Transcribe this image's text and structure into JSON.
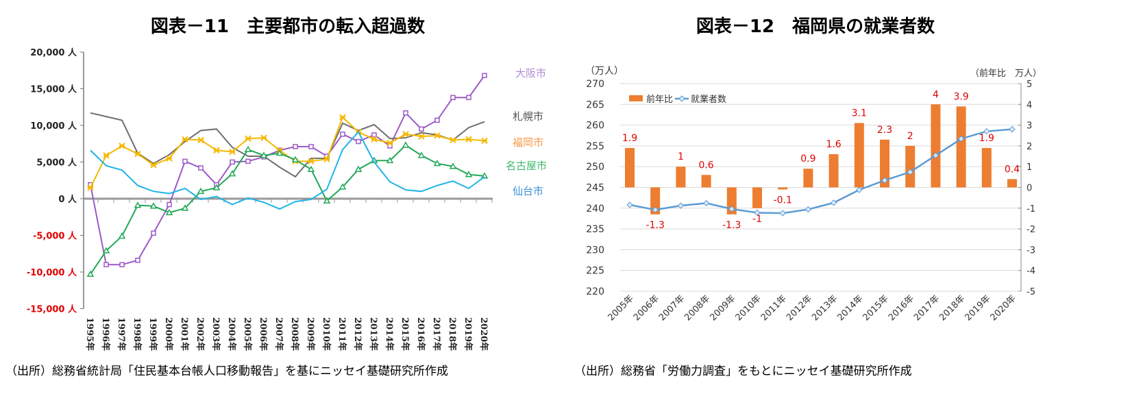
{
  "charts_titles": {
    "left": "図表－11　主要都市の転入超過数",
    "right": "図表－12　福岡県の就業者数"
  },
  "sources": {
    "left": "（出所）総務省統計局「住民基本台帳人口移動報告」を基にニッセイ基礎研究所作成",
    "right": "（出所）総務省「労働力調査」をもとにニッセイ基礎研究所作成"
  },
  "chart_data": [
    {
      "type": "line",
      "title": "図表－11　主要都市の転入超過数",
      "x": [
        "1995年",
        "1996年",
        "1997年",
        "1998年",
        "1999年",
        "2000年",
        "2001年",
        "2002年",
        "2003年",
        "2004年",
        "2005年",
        "2006年",
        "2007年",
        "2008年",
        "2009年",
        "2010年",
        "2011年",
        "2012年",
        "2013年",
        "2014年",
        "2015年",
        "2016年",
        "2017年",
        "2018年",
        "2019年",
        "2020年"
      ],
      "ylim": [
        -15000,
        20000
      ],
      "yticks": [
        20000,
        15000,
        10000,
        5000,
        0,
        -5000,
        -10000,
        -15000
      ],
      "ytick_labels": [
        "20,000 人",
        "15,000 人",
        "10,000 人",
        "5,000 人",
        "0 人",
        "-5,000 人",
        "-10,000 人",
        "-15,000 人"
      ],
      "negative_tick_color": "#e00000",
      "grid": false,
      "legend": "inline labels at right end",
      "series": [
        {
          "name": "大阪市",
          "color": "#9b59c6",
          "label_color": "#b58ad6",
          "marker": "square",
          "values": [
            1900,
            -9000,
            -9000,
            -8400,
            -4700,
            -800,
            5100,
            4200,
            1900,
            5000,
            5100,
            5700,
            6600,
            7100,
            7100,
            5800,
            8800,
            7800,
            8700,
            7200,
            11700,
            9500,
            10700,
            13800,
            13800,
            16800
          ]
        },
        {
          "name": "札幌市",
          "color": "#6e6e6e",
          "label_color": "#555555",
          "marker": "none",
          "values": [
            11700,
            11200,
            10700,
            6200,
            4800,
            6000,
            7800,
            9300,
            9500,
            7000,
            5800,
            5800,
            4300,
            3000,
            5500,
            5500,
            10300,
            9300,
            10100,
            8200,
            8300,
            9000,
            8700,
            8000,
            9700,
            10500
          ]
        },
        {
          "name": "福岡市",
          "color": "#f5b800",
          "label_color": "#f59a4a",
          "marker": "star",
          "values": [
            1500,
            5900,
            7200,
            6100,
            4600,
            5500,
            8100,
            8000,
            6600,
            6400,
            8200,
            8300,
            6600,
            5100,
            5100,
            5400,
            11100,
            9100,
            8100,
            7600,
            8800,
            8500,
            8600,
            8000,
            8100,
            7900
          ]
        },
        {
          "name": "名古屋市",
          "color": "#1fa855",
          "label_color": "#3cb86a",
          "marker": "triangle",
          "values": [
            -10300,
            -7100,
            -5100,
            -900,
            -1000,
            -1900,
            -1300,
            1000,
            1500,
            3400,
            6700,
            5900,
            6200,
            5300,
            4000,
            -300,
            1600,
            4000,
            5200,
            5200,
            7300,
            5900,
            4800,
            4400,
            3300,
            3100
          ]
        },
        {
          "name": "仙台市",
          "color": "#1eb4e8",
          "label_color": "#3a8fd8",
          "marker": "none",
          "values": [
            6600,
            4500,
            3900,
            1800,
            1000,
            700,
            1400,
            -100,
            300,
            -800,
            100,
            -500,
            -1400,
            -400,
            -100,
            1300,
            6700,
            9100,
            5000,
            2300,
            1200,
            1000,
            1800,
            2400,
            1400,
            3000
          ]
        }
      ]
    },
    {
      "type": "bar+line",
      "title": "図表－12　福岡県の就業者数",
      "categories": [
        "2005年",
        "2006年",
        "2007年",
        "2008年",
        "2009年",
        "2010年",
        "2011年",
        "2012年",
        "2013年",
        "2014年",
        "2015年",
        "2016年",
        "2017年",
        "2018年",
        "2019年",
        "2020年"
      ],
      "ylabel_left": "（万人）",
      "ylabel_right": "（前年比　万人）",
      "ylim_left": [
        220,
        270
      ],
      "yticks_left": [
        270,
        265,
        260,
        255,
        250,
        245,
        240,
        235,
        230,
        225,
        220
      ],
      "ylim_right": [
        -5,
        5
      ],
      "yticks_right": [
        5,
        4,
        3,
        2,
        1,
        0,
        -1,
        -2,
        -3,
        -4,
        -5
      ],
      "grid": true,
      "legend": "top-left",
      "label_color": "#e00000",
      "series": [
        {
          "name": "前年比",
          "kind": "bar",
          "axis": "right",
          "color": "#ed7d31",
          "values": [
            1.9,
            -1.3,
            1,
            0.6,
            -1.3,
            -1,
            -0.1,
            0.9,
            1.6,
            3.1,
            2.3,
            2,
            4,
            3.9,
            1.9,
            0.4
          ]
        },
        {
          "name": "就業者数",
          "kind": "line",
          "axis": "left",
          "color": "#5b9bd5",
          "marker": "diamond",
          "values": [
            240.8,
            239.6,
            240.6,
            241.2,
            239.8,
            238.9,
            238.8,
            239.7,
            241.3,
            244.4,
            246.7,
            248.7,
            252.7,
            256.7,
            258.5,
            259.0
          ]
        }
      ]
    }
  ]
}
